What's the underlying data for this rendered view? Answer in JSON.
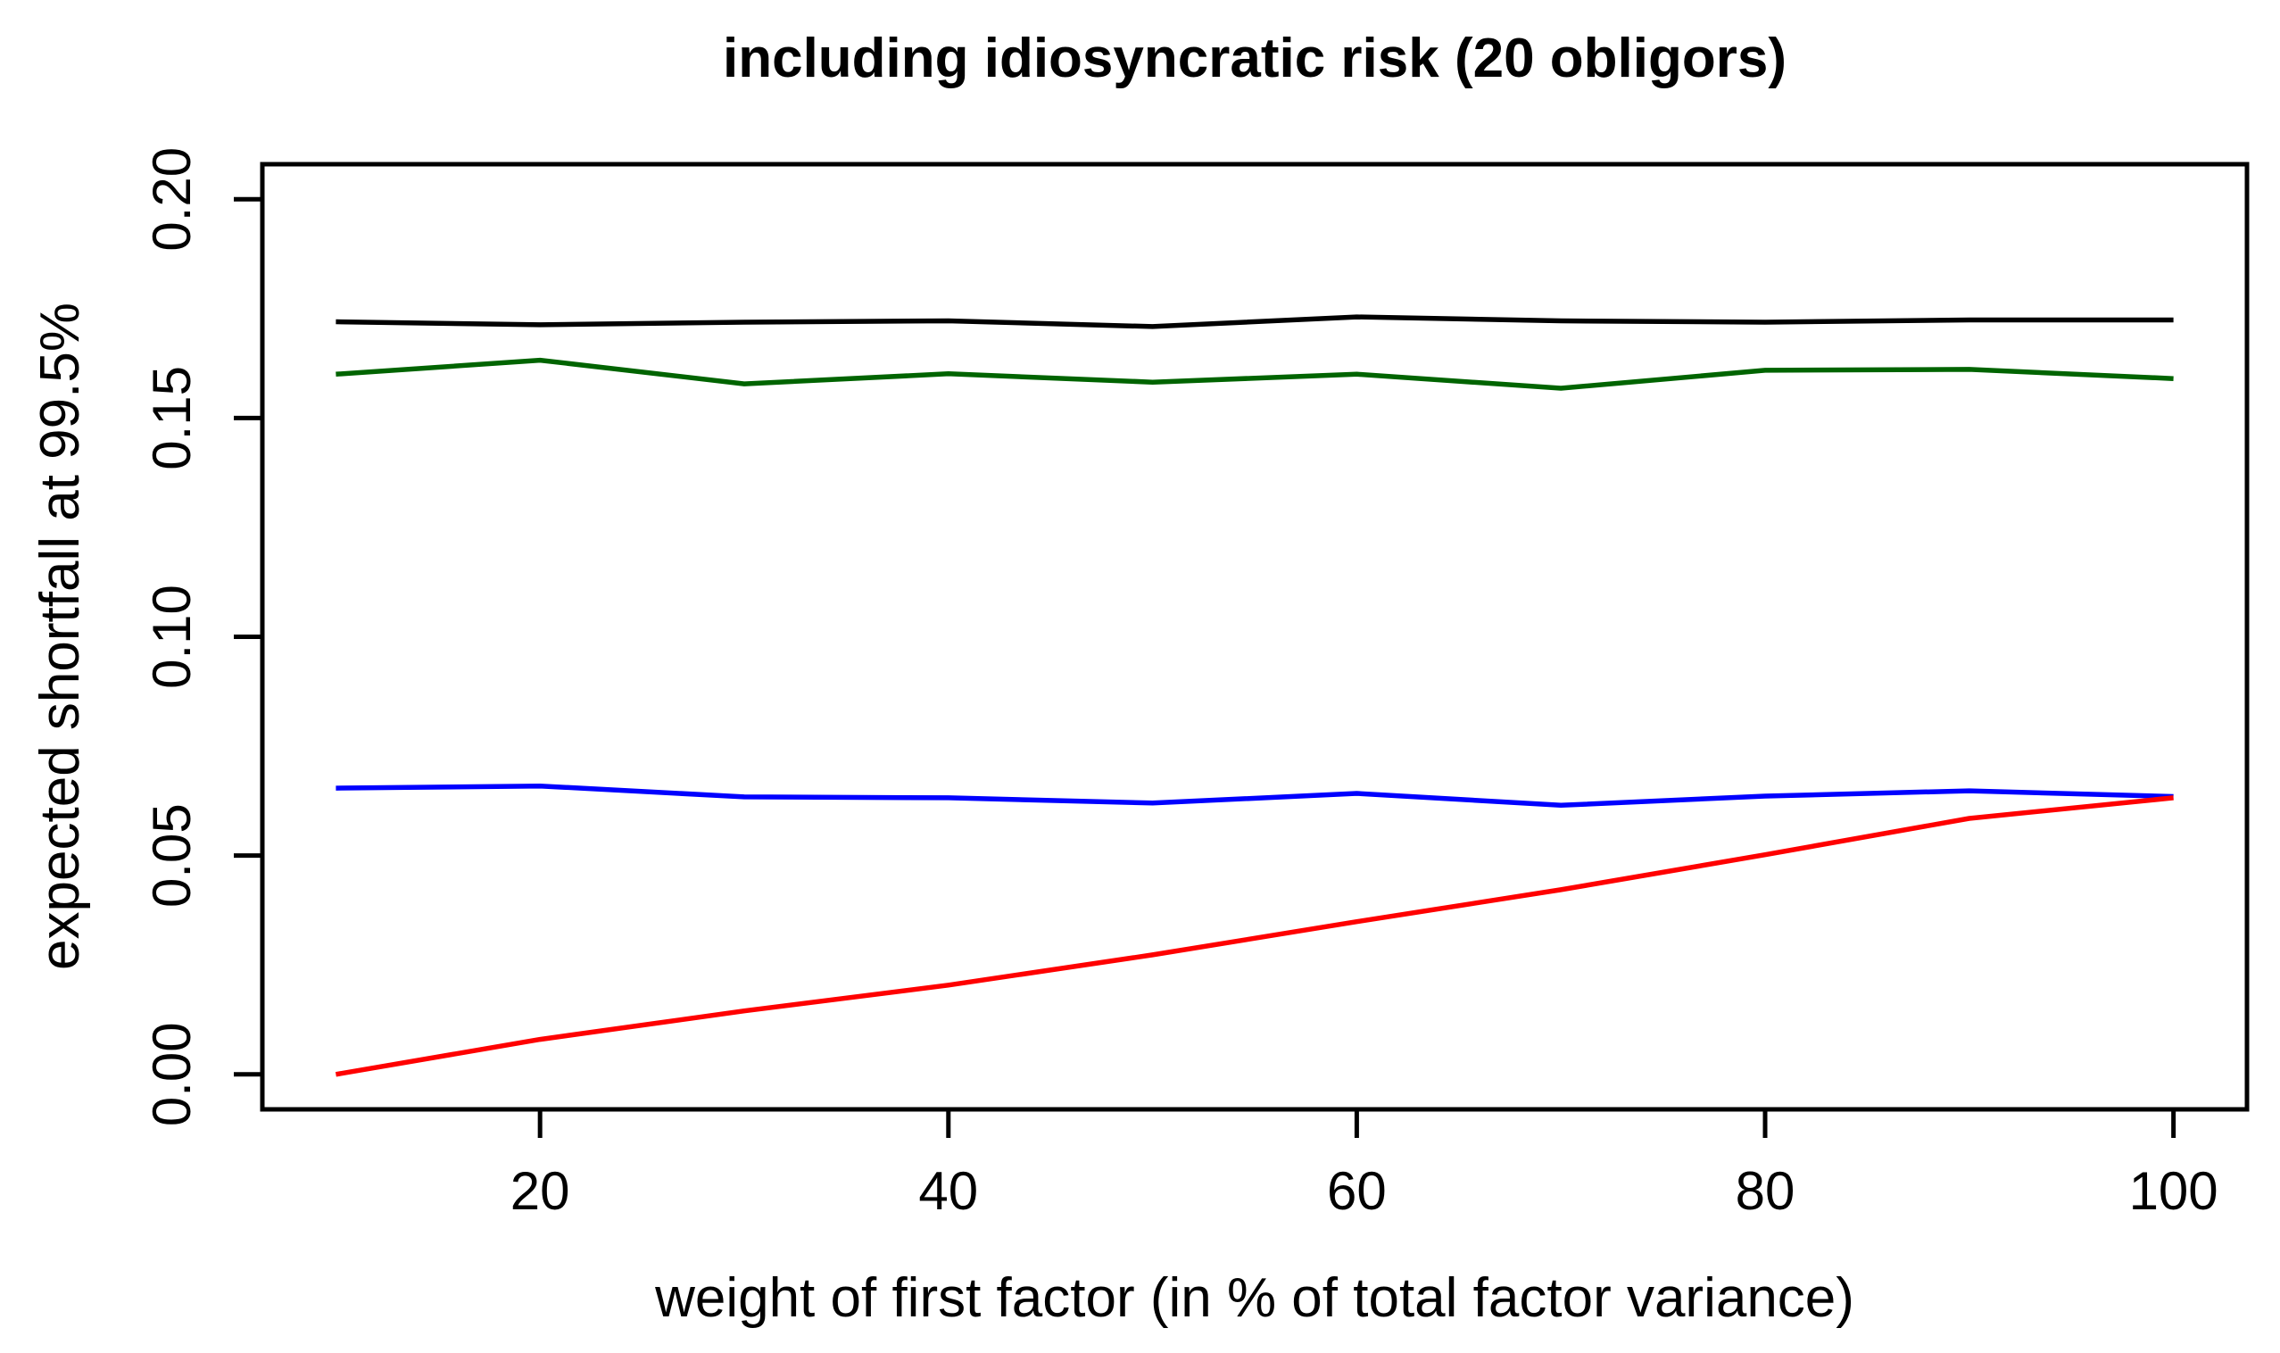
{
  "chart_data": {
    "type": "line",
    "title": "including idiosyncratic risk (20 obligors)",
    "xlabel": "weight of first factor (in % of total factor variance)",
    "ylabel": "expected shortfall at 99.5%",
    "grid": false,
    "legend": "none",
    "xlim": [
      6.4,
      103.6
    ],
    "ylim": [
      -0.008,
      0.208
    ],
    "xticks": [
      20,
      40,
      60,
      80,
      100
    ],
    "xtick_labels": [
      "20",
      "40",
      "60",
      "80",
      "100"
    ],
    "yticks": [
      0.0,
      0.05,
      0.1,
      0.15,
      0.2
    ],
    "ytick_labels": [
      "0.00",
      "0.05",
      "0.10",
      "0.15",
      "0.20"
    ],
    "x": [
      10,
      20,
      30,
      40,
      50,
      60,
      70,
      80,
      90,
      100
    ],
    "series": [
      {
        "name": "black-line",
        "color": "#000000",
        "values": [
          0.172,
          0.1713,
          0.1719,
          0.1722,
          0.1709,
          0.1731,
          0.1722,
          0.1719,
          0.1724,
          0.1724
        ]
      },
      {
        "name": "darkgreen-line",
        "color": "#006400",
        "values": [
          0.16,
          0.1632,
          0.1578,
          0.1601,
          0.1582,
          0.16,
          0.1568,
          0.1609,
          0.1611,
          0.159
        ]
      },
      {
        "name": "blue-line",
        "color": "#0000ff",
        "values": [
          0.0654,
          0.0659,
          0.0634,
          0.0632,
          0.062,
          0.0642,
          0.0615,
          0.0636,
          0.0648,
          0.0635
        ]
      },
      {
        "name": "red-line",
        "color": "#ff0000",
        "values": [
          0.0,
          0.008,
          0.0145,
          0.0204,
          0.0273,
          0.0349,
          0.0422,
          0.0502,
          0.0585,
          0.0632
        ]
      }
    ]
  }
}
